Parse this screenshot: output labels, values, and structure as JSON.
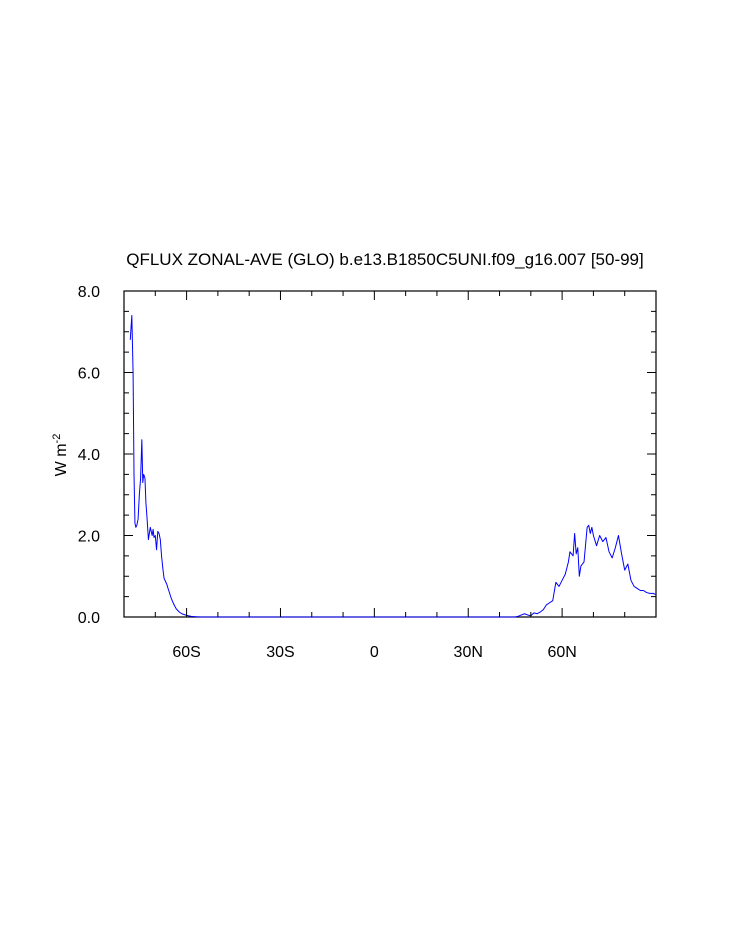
{
  "chart_data": {
    "type": "line",
    "title": "QFLUX ZONAL-AVE (GLO) b.e13.B1850C5UNI.f09_g16.007 [50-99]",
    "ylabel_base": "W m",
    "ylabel_sup": "-2",
    "xlabel": "",
    "xlim": [
      -80,
      90
    ],
    "ylim": [
      0,
      8
    ],
    "x_ticks": [
      {
        "value": -60,
        "label": "60S"
      },
      {
        "value": -30,
        "label": "30S"
      },
      {
        "value": 0,
        "label": "0"
      },
      {
        "value": 30,
        "label": "30N"
      },
      {
        "value": 60,
        "label": "60N"
      }
    ],
    "y_ticks": [
      {
        "value": 0,
        "label": "0.0"
      },
      {
        "value": 2,
        "label": "2.0"
      },
      {
        "value": 4,
        "label": "4.0"
      },
      {
        "value": 6,
        "label": "6.0"
      },
      {
        "value": 8,
        "label": "8.0"
      }
    ],
    "series": [
      {
        "color": "#0000ff",
        "x": [
          -78,
          -77.5,
          -77.1,
          -76.8,
          -76.5,
          -76.2,
          -75.9,
          -75.5,
          -75.1,
          -74.7,
          -74.3,
          -74,
          -73.7,
          -73.3,
          -73,
          -72.7,
          -72.2,
          -71.6,
          -71,
          -70.7,
          -70.4,
          -70,
          -69.6,
          -69.2,
          -68.8,
          -68.4,
          -68,
          -67.6,
          -67.2,
          -66.9,
          -66.6,
          -66.3,
          -66,
          -65.7,
          -65.4,
          -65.1,
          -64.8,
          -64.3,
          -63.8,
          -63.3,
          -62.8,
          -62.3,
          -61.5,
          -60,
          -58.5,
          -57,
          -55.5,
          -54,
          -52.5,
          -51,
          -50,
          -48,
          -40,
          -20,
          0,
          20,
          35,
          40,
          45,
          46,
          47,
          48,
          49,
          50,
          51,
          52,
          53,
          54,
          55,
          56,
          57,
          58,
          59,
          60,
          61,
          62,
          62.5,
          63,
          63.5,
          64,
          64.5,
          65,
          65.5,
          66,
          67,
          68,
          68.5,
          69,
          69.5,
          70,
          71,
          72,
          73,
          74,
          75,
          76,
          77,
          78,
          79,
          80,
          81,
          82,
          83,
          84,
          85,
          86,
          87,
          88,
          89,
          90
        ],
        "y": [
          6.8,
          7.4,
          6.0,
          3.5,
          2.3,
          2.2,
          2.25,
          2.4,
          3.0,
          3.4,
          4.35,
          3.3,
          3.5,
          3.4,
          2.8,
          2.5,
          1.9,
          2.2,
          2.0,
          2.15,
          1.95,
          2.0,
          1.65,
          2.1,
          2.05,
          1.9,
          1.5,
          1.2,
          0.95,
          0.9,
          0.85,
          0.8,
          0.72,
          0.65,
          0.58,
          0.5,
          0.44,
          0.35,
          0.27,
          0.2,
          0.16,
          0.12,
          0.08,
          0.04,
          0.015,
          0.005,
          0.0,
          0.0,
          0.0,
          0.0,
          0.0,
          0.0,
          0.0,
          0.0,
          0.0,
          0.0,
          0.0,
          0.0,
          0.0,
          0.02,
          0.05,
          0.08,
          0.05,
          0.03,
          0.1,
          0.08,
          0.12,
          0.18,
          0.3,
          0.35,
          0.4,
          0.85,
          0.75,
          0.9,
          1.05,
          1.35,
          1.6,
          1.55,
          1.5,
          2.05,
          1.55,
          1.7,
          1.0,
          1.25,
          1.35,
          2.2,
          2.25,
          2.05,
          2.2,
          2.0,
          1.75,
          2.0,
          1.85,
          1.95,
          1.6,
          1.45,
          1.7,
          2.0,
          1.55,
          1.15,
          1.3,
          0.9,
          0.75,
          0.7,
          0.65,
          0.65,
          0.6,
          0.58,
          0.58,
          0.55
        ]
      }
    ]
  }
}
